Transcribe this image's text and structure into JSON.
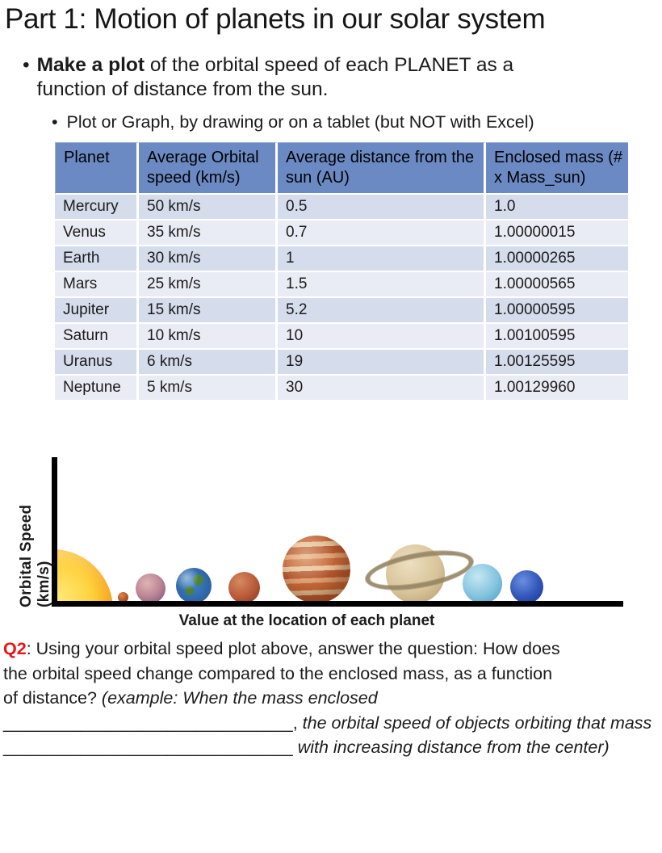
{
  "page": {
    "title": "Part 1: Motion of planets in our solar system"
  },
  "bullets": {
    "marker": "•",
    "main_bold": "Make a plot",
    "main_rest": " of the orbital speed of each PLANET as a function of distance from the sun.",
    "sub": "Plot or Graph, by drawing or on a tablet (but NOT with Excel)"
  },
  "table": {
    "headers": [
      "Planet",
      "Average Orbital speed (km/s)",
      "Average distance from the sun (AU)",
      "Enclosed mass (# x Mass_sun)"
    ],
    "rows": [
      [
        "Mercury",
        "50 km/s",
        "0.5",
        "1.0"
      ],
      [
        "Venus",
        "35 km/s",
        "0.7",
        "1.00000015"
      ],
      [
        "Earth",
        "30 km/s",
        "1",
        "1.00000265"
      ],
      [
        "Mars",
        "25 km/s",
        "1.5",
        "1.00000565"
      ],
      [
        "Jupiter",
        "15 km/s",
        "5.2",
        "1.00000595"
      ],
      [
        "Saturn",
        "10 km/s",
        "10",
        "1.00100595"
      ],
      [
        "Uranus",
        "6 km/s",
        "19",
        "1.00125595"
      ],
      [
        "Neptune",
        "5 km/s",
        "30",
        "1.00129960"
      ]
    ]
  },
  "graph": {
    "ylabel": "Orbital Speed (km/s)",
    "caption": "Value at the location of each planet",
    "planets": [
      "sun",
      "mercury",
      "venus",
      "earth",
      "mars",
      "jupiter",
      "saturn",
      "uranus",
      "neptune"
    ]
  },
  "q2": {
    "label": "Q2",
    "line1": ": Using your orbital speed plot above, answer the question: How does",
    "line2": "the orbital speed change compared to the enclosed mass, as a function",
    "line3_normal": "of distance? ",
    "line3_italic": "(example: When the mass enclosed",
    "line4_blank": "______________________________",
    "line4_comma": ", ",
    "line4_italic": "the orbital speed of objects orbiting that mass",
    "line5_blank": "______________________________ ",
    "line5_italic": "with increasing distance from the center)"
  },
  "colors": {
    "table_header_blue": "#6b8ac4",
    "row_dark": "#d5dcec",
    "row_light": "#eaecf5",
    "q2_red": "#e81416",
    "axis_black": "#000000"
  }
}
